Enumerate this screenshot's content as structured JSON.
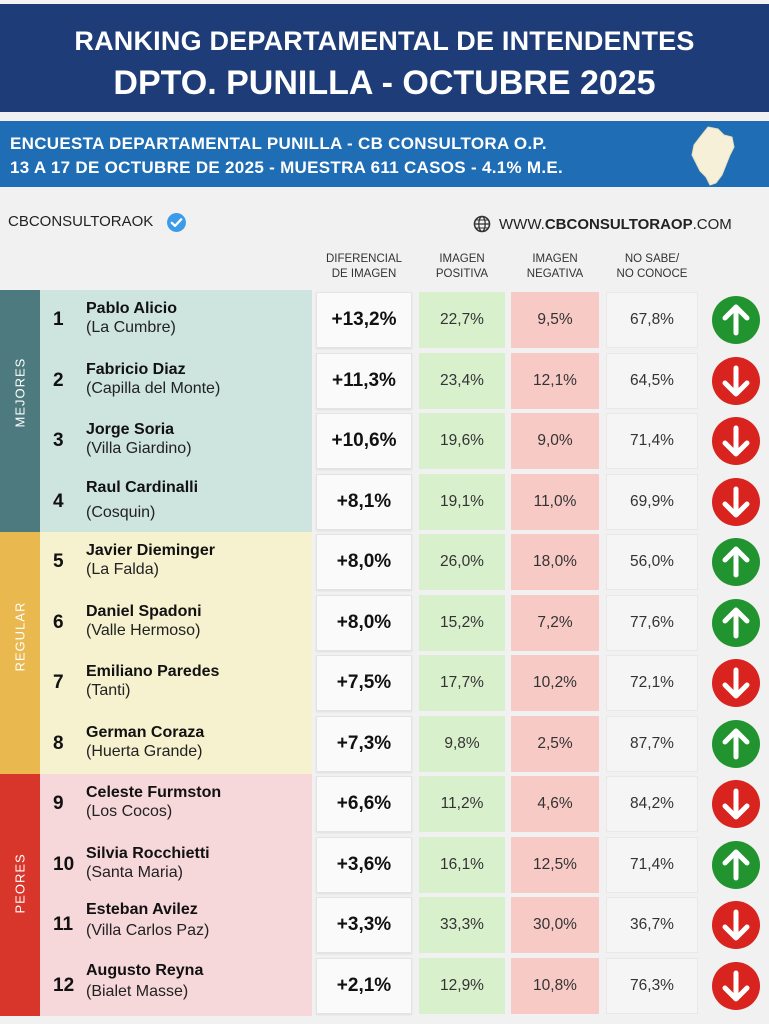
{
  "header": {
    "title_line1": "RANKING DEPARTAMENTAL DE INTENDENTES",
    "title_line2": "DPTO. PUNILLA - OCTUBRE 2025"
  },
  "subheader": {
    "line1": "ENCUESTA DEPARTAMENTAL PUNILLA - CB CONSULTORA O.P.",
    "line2": "13 A 17 DE OCTUBRE  DE 2025 - MUESTRA 611 CASOS - 4.1% M.E."
  },
  "brand": {
    "handle": "CBCONSULTORAOK",
    "website": "WWW.CBCONSULTORAOP.COM"
  },
  "columns": {
    "diff": [
      "DIFERENCIAL",
      "DE IMAGEN"
    ],
    "pos": [
      "IMAGEN",
      "POSITIVA"
    ],
    "neg": [
      "IMAGEN",
      "NEGATIVA"
    ],
    "ns": [
      "NO SABE/",
      "NO CONOCE"
    ]
  },
  "groups": [
    {
      "label": "MEJORES",
      "color": "#4d7a7f"
    },
    {
      "label": "REGULAR",
      "color": "#e9b84f"
    },
    {
      "label": "PEORES",
      "color": "#d9362b"
    }
  ],
  "colors": {
    "header_bg": "#1d3c78",
    "subbar_bg": "#1f6db5",
    "mejores_row": "#cde4df",
    "regular_row": "#f6f1cf",
    "peores_row": "#f6d7da",
    "positive_cell": "#d9f0cd",
    "negative_cell": "#f7cac6",
    "arrow_up": "#22942f",
    "arrow_down": "#d8231f"
  },
  "chart_data": {
    "type": "table",
    "title": "RANKING DEPARTAMENTAL DE INTENDENTES",
    "rows": [
      {
        "rank": "1",
        "name": "Pablo Alicio",
        "town": "(La Cumbre)",
        "diff": "+13,2%",
        "pos": "22,7%",
        "neg": "9,5%",
        "ns": "67,8%",
        "trend": "up"
      },
      {
        "rank": "2",
        "name": "Fabricio Diaz",
        "town": "(Capilla del Monte)",
        "diff": "+11,3%",
        "pos": "23,4%",
        "neg": "12,1%",
        "ns": "64,5%",
        "trend": "down"
      },
      {
        "rank": "3",
        "name": "Jorge Soria",
        "town": "(Villa Giardino)",
        "diff": "+10,6%",
        "pos": "19,6%",
        "neg": "9,0%",
        "ns": "71,4%",
        "trend": "down"
      },
      {
        "rank": "4",
        "name": "Raul Cardinalli",
        "town": "(Cosquin)",
        "diff": "+8,1%",
        "pos": "19,1%",
        "neg": "11,0%",
        "ns": "69,9%",
        "trend": "down"
      },
      {
        "rank": "5",
        "name": "Javier Dieminger",
        "town": "(La Falda)",
        "diff": "+8,0%",
        "pos": "26,0%",
        "neg": "18,0%",
        "ns": "56,0%",
        "trend": "up"
      },
      {
        "rank": "6",
        "name": "Daniel Spadoni",
        "town": "(Valle Hermoso)",
        "diff": "+8,0%",
        "pos": "15,2%",
        "neg": "7,2%",
        "ns": "77,6%",
        "trend": "up"
      },
      {
        "rank": "7",
        "name": "Emiliano Paredes",
        "town": "(Tanti)",
        "diff": "+7,5%",
        "pos": "17,7%",
        "neg": "10,2%",
        "ns": "72,1%",
        "trend": "down"
      },
      {
        "rank": "8",
        "name": "German Coraza",
        "town": "(Huerta Grande)",
        "diff": "+7,3%",
        "pos": "9,8%",
        "neg": "2,5%",
        "ns": "87,7%",
        "trend": "up"
      },
      {
        "rank": "9",
        "name": "Celeste Furmston",
        "town": "(Los Cocos)",
        "diff": "+6,6%",
        "pos": "11,2%",
        "neg": "4,6%",
        "ns": "84,2%",
        "trend": "down"
      },
      {
        "rank": "10",
        "name": "Silvia Rocchietti",
        "town": "(Santa Maria)",
        "diff": "+3,6%",
        "pos": "16,1%",
        "neg": "12,5%",
        "ns": "71,4%",
        "trend": "up"
      },
      {
        "rank": "11",
        "name": "Esteban Avilez",
        "town": "(Villa Carlos Paz)",
        "diff": "+3,3%",
        "pos": "33,3%",
        "neg": "30,0%",
        "ns": "36,7%",
        "trend": "down"
      },
      {
        "rank": "12",
        "name": "Augusto Reyna",
        "town": "(Bialet Masse)",
        "diff": "+2,1%",
        "pos": "12,9%",
        "neg": "10,8%",
        "ns": "76,3%",
        "trend": "down"
      }
    ]
  }
}
